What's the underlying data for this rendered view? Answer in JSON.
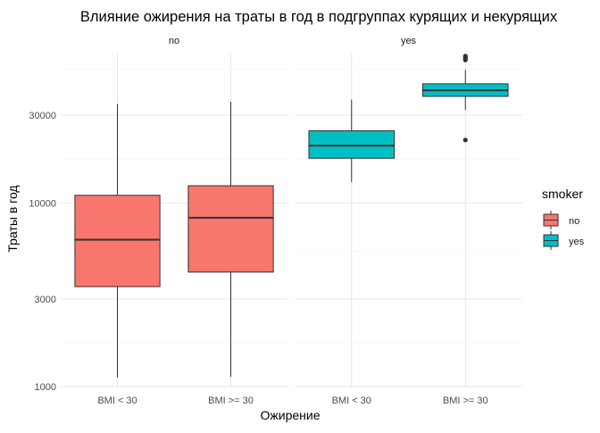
{
  "chart_data": {
    "type": "boxplot",
    "title": "Влияние ожирения на траты в год в подгруппах курящих и некурящих",
    "xlabel": "Ожирение",
    "ylabel": "Траты в год",
    "y_scale": "log10",
    "ylim": [
      1000,
      65000
    ],
    "y_ticks": [
      1000,
      3000,
      10000,
      30000
    ],
    "y_tick_labels": [
      "1000",
      "3000",
      "10000",
      "30000"
    ],
    "categories": [
      "BMI < 30",
      "BMI >= 30"
    ],
    "panels": [
      {
        "label": "no",
        "boxes": [
          {
            "category": "BMI < 30",
            "group": "no",
            "min": 1120,
            "q1": 3500,
            "median": 6300,
            "q3": 11000,
            "max": 34500,
            "outliers": []
          },
          {
            "category": "BMI >= 30",
            "group": "no",
            "min": 1130,
            "q1": 4200,
            "median": 8300,
            "q3": 12400,
            "max": 35500,
            "outliers": []
          }
        ]
      },
      {
        "label": "yes",
        "boxes": [
          {
            "category": "BMI < 30",
            "group": "yes",
            "min": 13000,
            "q1": 17500,
            "median": 20500,
            "q3": 24700,
            "max": 36500,
            "outliers": []
          },
          {
            "category": "BMI >= 30",
            "group": "yes",
            "min": 32000,
            "q1": 38000,
            "median": 41000,
            "q3": 44500,
            "max": 53000,
            "outliers": [
              22000,
              60000,
              61000,
              62000,
              63000
            ]
          }
        ]
      }
    ],
    "legend": {
      "title": "smoker",
      "position": "right",
      "items": [
        {
          "label": "no",
          "color": "#F8766D"
        },
        {
          "label": "yes",
          "color": "#00BFC4"
        }
      ]
    },
    "grid": true
  }
}
